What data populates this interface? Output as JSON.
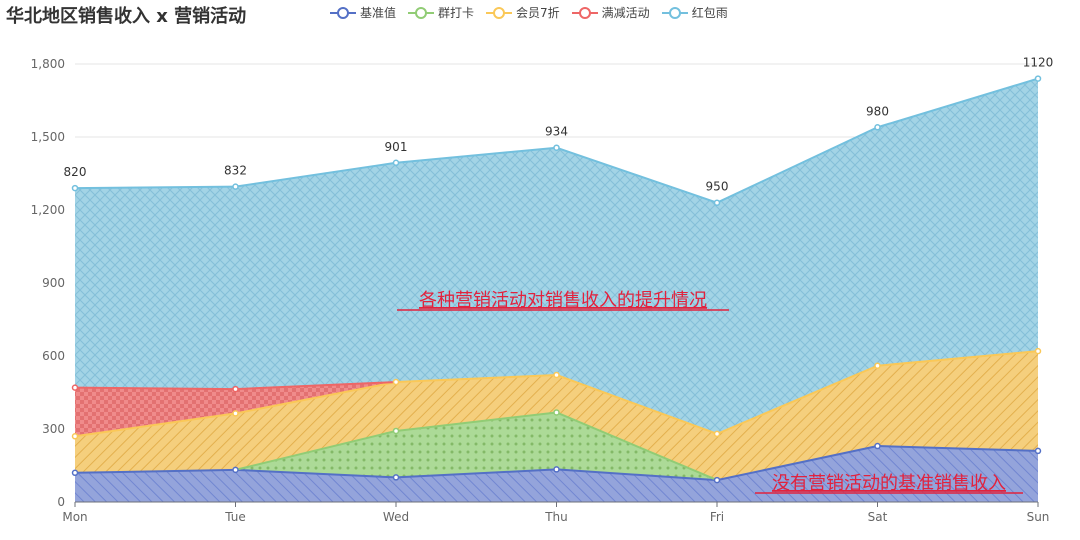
{
  "title": "华北地区销售收入 x 营销活动",
  "chart_data": {
    "type": "area",
    "stacked": true,
    "categories": [
      "Mon",
      "Tue",
      "Wed",
      "Thu",
      "Fri",
      "Sat",
      "Sun"
    ],
    "ylim": [
      0,
      1800
    ],
    "yticks": [
      0,
      300,
      600,
      900,
      1200,
      1500,
      1800
    ],
    "ytick_labels": [
      "0",
      "300",
      "600",
      "900",
      "1,200",
      "1,500",
      "1,800"
    ],
    "grid": true,
    "legend_position": "top",
    "series": [
      {
        "name": "基准值",
        "color": "#5470c6",
        "pattern": "diagonal-back",
        "values": [
          120,
          132,
          101,
          134,
          90,
          230,
          210
        ]
      },
      {
        "name": "群打卡",
        "color": "#91cc75",
        "pattern": "dots",
        "values": [
          0,
          0,
          191,
          234,
          0,
          0,
          0
        ]
      },
      {
        "name": "会员7折",
        "color": "#fac858",
        "pattern": "diagonal",
        "values": [
          150,
          232,
          201,
          154,
          190,
          330,
          410
        ]
      },
      {
        "name": "满减活动",
        "color": "#ee6666",
        "pattern": "checker",
        "values": [
          200,
          100,
          0,
          0,
          0,
          0,
          0
        ]
      },
      {
        "name": "红包雨",
        "color": "#73c0de",
        "pattern": "crosshatch",
        "values": [
          820,
          832,
          901,
          934,
          950,
          980,
          1120
        ]
      }
    ],
    "top_labels": [
      "820",
      "832",
      "901",
      "934",
      "950",
      "980",
      "1120"
    ],
    "annotations": [
      {
        "text": "各种营销活动对销售收入的提升情况"
      },
      {
        "text": "没有营销活动的基准销售收入"
      }
    ]
  }
}
